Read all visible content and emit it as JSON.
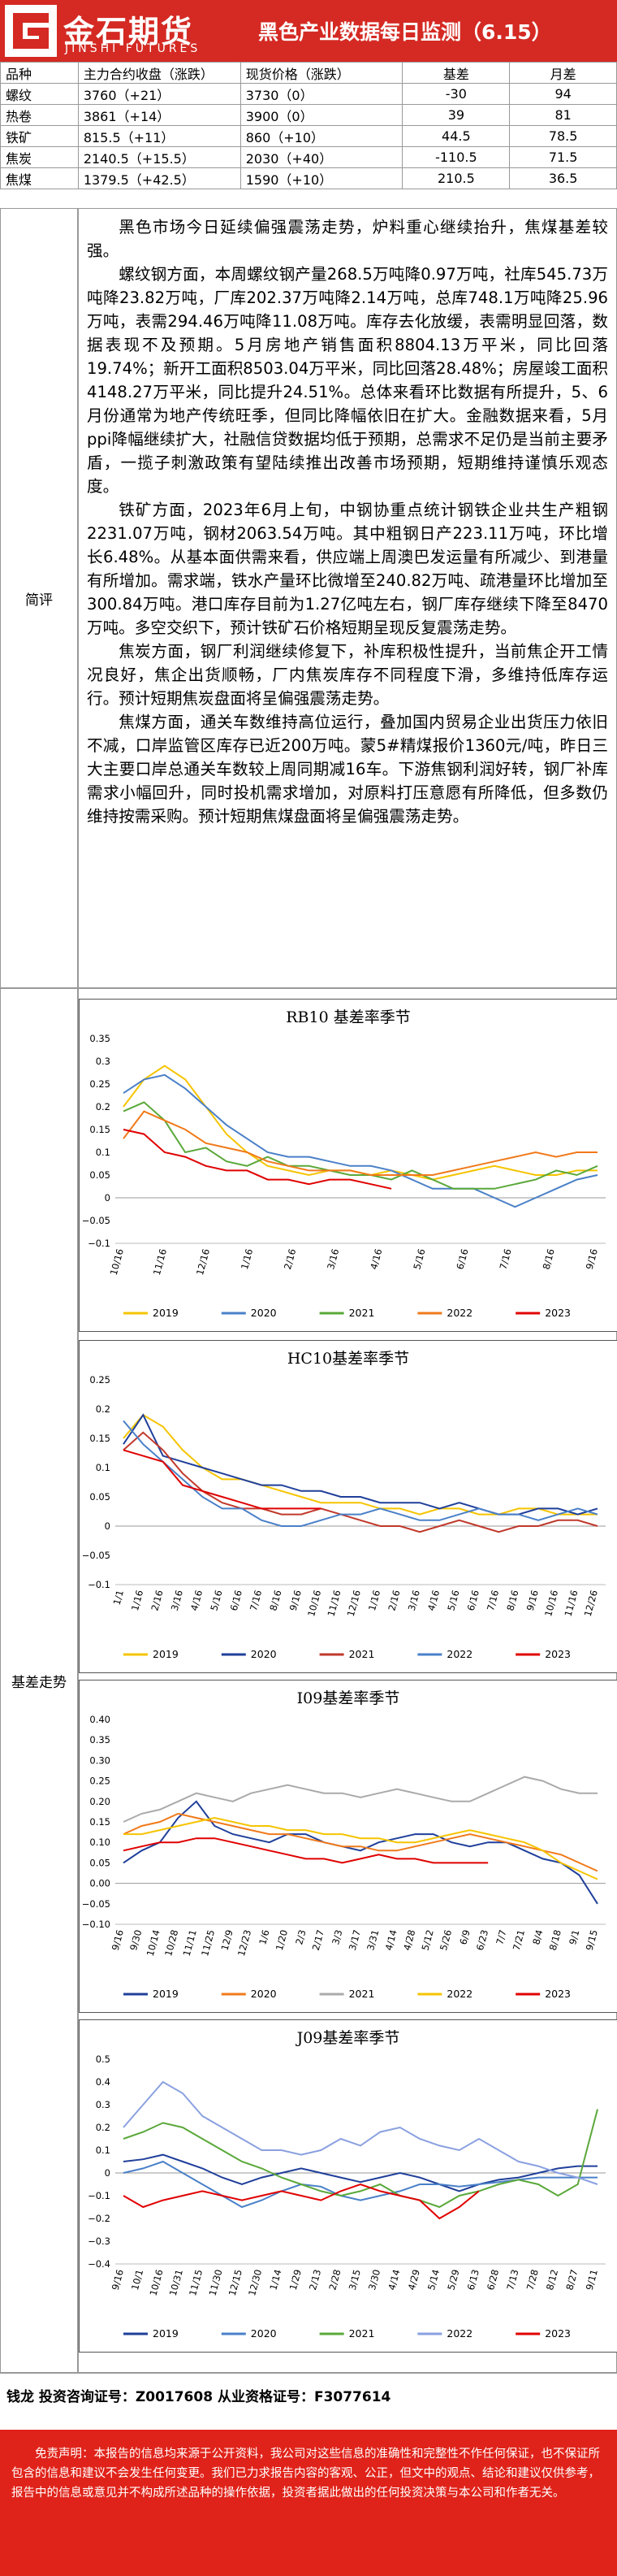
{
  "header": {
    "logo_cn": "金石期货",
    "logo_en": "JINSHI FUTURES",
    "title": "黑色产业数据每日监测（6.15）"
  },
  "price_table": {
    "headers": [
      "品种",
      "主力合约收盘（涨跌）",
      "现货价格（涨跌）",
      "基差",
      "月差"
    ],
    "rows": [
      [
        "螺纹",
        "3760（+21）",
        "3730（0）",
        "-30",
        "94"
      ],
      [
        "热卷",
        "3861（+14）",
        "3900（0）",
        "39",
        "81"
      ],
      [
        "铁矿",
        "815.5（+11）",
        "860（+10）",
        "44.5",
        "78.5"
      ],
      [
        "焦炭",
        "2140.5（+15.5）",
        "2030（+40）",
        "-110.5",
        "71.5"
      ],
      [
        "焦煤",
        "1379.5（+42.5）",
        "1590（+10）",
        "210.5",
        "36.5"
      ]
    ]
  },
  "commentary": {
    "label": "简评",
    "paragraphs": [
      "黑色市场今日延续偏强震荡走势，炉料重心继续抬升，焦煤基差较强。",
      "螺纹钢方面，本周螺纹钢产量268.5万吨降0.97万吨，社库545.73万吨降23.82万吨，厂库202.37万吨降2.14万吨，总库748.1万吨降25.96万吨，表需294.46万吨降11.08万吨。库存去化放缓，表需明显回落，数据表现不及预期。5月房地产销售面积8804.13万平米，同比回落19.74%；新开工面积8503.04万平米，同比回落28.48%；房屋竣工面积4148.27万平米，同比提升24.51%。总体来看环比数据有所提升，5、6月份通常为地产传统旺季，但同比降幅依旧在扩大。金融数据来看，5月ppi降幅继续扩大，社融信贷数据均低于预期，总需求不足仍是当前主要矛盾，一揽子刺激政策有望陆续推出改善市场预期，短期维持谨慎乐观态度。",
      "铁矿方面，2023年6月上旬，中钢协重点统计钢铁企业共生产粗钢2231.07万吨，钢材2063.54万吨。其中粗钢日产223.11万吨，环比增长6.48%。从基本面供需来看，供应端上周澳巴发运量有所减少、到港量有所增加。需求端，铁水产量环比微增至240.82万吨、疏港量环比增加至300.84万吨。港口库存目前为1.27亿吨左右，钢厂库存继续下降至8470万吨。多空交织下，预计铁矿石价格短期呈现反复震荡走势。",
      "焦炭方面，钢厂利润继续修复下，补库积极性提升，当前焦企开工情况良好，焦企出货顺畅，厂内焦炭库存不同程度下滑，多维持低库存运行。预计短期焦炭盘面将呈偏强震荡走势。",
      "焦煤方面，通关车数维持高位运行，叠加国内贸易企业出货压力依旧不减，口岸监管区库存已近200万吨。蒙5#精煤报价1360元/吨，昨日三大主要口岸总通关车数较上周同期减16车。下游焦钢利润好转，钢厂补库需求小幅回升，同时投机需求增加，对原料打压意愿有所降低，但多数仍维持按需采购。预计短期焦煤盘面将呈偏强震荡走势。"
    ]
  },
  "charts_section": {
    "label": "基差走势"
  },
  "chart_data": [
    {
      "type": "line",
      "title": "RB10 基差率季节",
      "ylim": [
        -0.1,
        0.35
      ],
      "yticks": [
        "0.35",
        "0.3",
        "0.25",
        "0.2",
        "0.15",
        "0.1",
        "0.05",
        "0",
        "−0.05",
        "−0.1"
      ],
      "xticks": [
        "10/16",
        "11/16",
        "12/16",
        "1/16",
        "2/16",
        "3/16",
        "4/16",
        "5/16",
        "6/16",
        "7/16",
        "8/16",
        "9/16"
      ],
      "legend_position": "bottom",
      "series": [
        {
          "name": "2019",
          "color": "#f5c400",
          "values": [
            0.2,
            0.26,
            0.29,
            0.26,
            0.2,
            0.14,
            0.1,
            0.07,
            0.06,
            0.05,
            0.06,
            0.06,
            0.05,
            0.06,
            0.05,
            0.04,
            0.05,
            0.06,
            0.07,
            0.06,
            0.05,
            0.05,
            0.06,
            0.06
          ]
        },
        {
          "name": "2020",
          "color": "#4a80c8",
          "values": [
            0.23,
            0.26,
            0.27,
            0.24,
            0.2,
            0.16,
            0.13,
            0.1,
            0.09,
            0.09,
            0.08,
            0.07,
            0.07,
            0.06,
            0.04,
            0.02,
            0.02,
            0.02,
            0.0,
            -0.02,
            0.0,
            0.02,
            0.04,
            0.05
          ]
        },
        {
          "name": "2021",
          "color": "#5aa83a",
          "values": [
            0.19,
            0.21,
            0.17,
            0.1,
            0.11,
            0.08,
            0.07,
            0.09,
            0.07,
            0.07,
            0.06,
            0.05,
            0.05,
            0.04,
            0.06,
            0.04,
            0.02,
            0.02,
            0.02,
            0.03,
            0.04,
            0.06,
            0.05,
            0.07
          ]
        },
        {
          "name": "2022",
          "color": "#f07a1a",
          "values": [
            0.13,
            0.19,
            0.17,
            0.15,
            0.12,
            0.11,
            0.1,
            0.08,
            0.07,
            0.06,
            0.06,
            0.06,
            0.05,
            0.05,
            0.05,
            0.05,
            0.06,
            0.07,
            0.08,
            0.09,
            0.1,
            0.09,
            0.1,
            0.1
          ]
        },
        {
          "name": "2023",
          "color": "#e00000",
          "values": [
            0.15,
            0.14,
            0.1,
            0.09,
            0.07,
            0.06,
            0.06,
            0.04,
            0.04,
            0.03,
            0.04,
            0.04,
            0.03,
            0.02
          ]
        }
      ]
    },
    {
      "type": "line",
      "title": "HC10基差率季节",
      "ylim": [
        -0.1,
        0.25
      ],
      "yticks": [
        "0.25",
        "0.2",
        "0.15",
        "0.1",
        "0.05",
        "0",
        "−0.05",
        "−0.1"
      ],
      "xticks": [
        "1/1",
        "1/16",
        "2/16",
        "3/16",
        "4/16",
        "5/16",
        "6/16",
        "7/16",
        "8/16",
        "9/16",
        "10/16",
        "11/16",
        "12/16",
        "1/16",
        "2/16",
        "3/16",
        "4/16",
        "5/16",
        "6/16",
        "7/16",
        "8/16",
        "9/16",
        "10/16",
        "11/16",
        "12/26"
      ],
      "legend_position": "bottom",
      "series": [
        {
          "name": "2019",
          "color": "#f5c400",
          "values": [
            0.15,
            0.19,
            0.17,
            0.13,
            0.1,
            0.08,
            0.08,
            0.07,
            0.06,
            0.05,
            0.04,
            0.04,
            0.04,
            0.03,
            0.03,
            0.02,
            0.03,
            0.03,
            0.02,
            0.02,
            0.03,
            0.03,
            0.02,
            0.02,
            0.02
          ]
        },
        {
          "name": "2020",
          "color": "#1f3f9a",
          "values": [
            0.14,
            0.19,
            0.12,
            0.11,
            0.1,
            0.09,
            0.08,
            0.07,
            0.07,
            0.06,
            0.06,
            0.05,
            0.05,
            0.04,
            0.04,
            0.04,
            0.03,
            0.04,
            0.03,
            0.02,
            0.02,
            0.03,
            0.03,
            0.02,
            0.03
          ]
        },
        {
          "name": "2021",
          "color": "#c0392b",
          "values": [
            0.13,
            0.16,
            0.13,
            0.09,
            0.06,
            0.04,
            0.03,
            0.03,
            0.02,
            0.02,
            0.03,
            0.02,
            0.01,
            0.0,
            0.0,
            -0.01,
            0.0,
            0.01,
            0.0,
            -0.01,
            0.0,
            0.0,
            0.01,
            0.01,
            0.0
          ]
        },
        {
          "name": "2022",
          "color": "#4a80c8",
          "values": [
            0.18,
            0.14,
            0.11,
            0.08,
            0.05,
            0.03,
            0.03,
            0.01,
            0.0,
            0.0,
            0.01,
            0.02,
            0.02,
            0.03,
            0.02,
            0.01,
            0.01,
            0.02,
            0.03,
            0.02,
            0.02,
            0.01,
            0.02,
            0.03,
            0.02
          ]
        },
        {
          "name": "2023",
          "color": "#e00000",
          "values": [
            0.13,
            0.12,
            0.11,
            0.07,
            0.06,
            0.05,
            0.04,
            0.03,
            0.03,
            0.03,
            0.03
          ]
        }
      ]
    },
    {
      "type": "line",
      "title": "I09基差率季节",
      "ylim": [
        -0.1,
        0.4
      ],
      "yticks": [
        "0.40",
        "0.35",
        "0.30",
        "0.25",
        "0.20",
        "0.15",
        "0.10",
        "0.05",
        "0.00",
        "−0.05",
        "−0.10"
      ],
      "xticks": [
        "9/16",
        "9/30",
        "10/14",
        "10/28",
        "11/11",
        "11/25",
        "12/9",
        "12/23",
        "1/6",
        "1/20",
        "2/3",
        "2/17",
        "3/3",
        "3/17",
        "3/31",
        "4/14",
        "4/28",
        "5/12",
        "5/26",
        "6/9",
        "6/23",
        "7/7",
        "7/21",
        "8/4",
        "8/18",
        "9/1",
        "9/15"
      ],
      "legend_position": "bottom",
      "series": [
        {
          "name": "2019",
          "color": "#1f3f9a",
          "values": [
            0.05,
            0.08,
            0.1,
            0.16,
            0.2,
            0.14,
            0.12,
            0.11,
            0.1,
            0.12,
            0.12,
            0.1,
            0.09,
            0.08,
            0.1,
            0.11,
            0.12,
            0.12,
            0.1,
            0.09,
            0.1,
            0.1,
            0.08,
            0.06,
            0.05,
            0.02,
            -0.05
          ]
        },
        {
          "name": "2020",
          "color": "#f07a1a",
          "values": [
            0.12,
            0.14,
            0.15,
            0.17,
            0.16,
            0.15,
            0.14,
            0.13,
            0.12,
            0.12,
            0.11,
            0.1,
            0.09,
            0.09,
            0.08,
            0.08,
            0.09,
            0.1,
            0.11,
            0.12,
            0.11,
            0.1,
            0.09,
            0.08,
            0.07,
            0.05,
            0.03
          ]
        },
        {
          "name": "2021",
          "color": "#aaaaaa",
          "values": [
            0.15,
            0.17,
            0.18,
            0.2,
            0.22,
            0.21,
            0.2,
            0.22,
            0.23,
            0.24,
            0.23,
            0.22,
            0.22,
            0.21,
            0.22,
            0.23,
            0.22,
            0.21,
            0.2,
            0.2,
            0.22,
            0.24,
            0.26,
            0.25,
            0.23,
            0.22,
            0.22
          ]
        },
        {
          "name": "2022",
          "color": "#f5c400",
          "values": [
            0.12,
            0.12,
            0.13,
            0.14,
            0.15,
            0.16,
            0.15,
            0.14,
            0.14,
            0.13,
            0.13,
            0.12,
            0.12,
            0.11,
            0.11,
            0.1,
            0.1,
            0.11,
            0.12,
            0.13,
            0.12,
            0.11,
            0.1,
            0.08,
            0.05,
            0.03,
            0.01
          ]
        },
        {
          "name": "2023",
          "color": "#e00000",
          "values": [
            0.08,
            0.09,
            0.1,
            0.1,
            0.11,
            0.11,
            0.1,
            0.09,
            0.08,
            0.07,
            0.06,
            0.06,
            0.05,
            0.06,
            0.07,
            0.06,
            0.06,
            0.05,
            0.05,
            0.05,
            0.05
          ]
        }
      ]
    },
    {
      "type": "line",
      "title": "J09基差率季节",
      "ylim": [
        -0.4,
        0.5
      ],
      "yticks": [
        "0.5",
        "0.4",
        "0.3",
        "0.2",
        "0.1",
        "0",
        "−0.1",
        "−0.2",
        "−0.3",
        "−0.4"
      ],
      "xticks": [
        "9/16",
        "10/1",
        "10/16",
        "10/31",
        "11/15",
        "11/30",
        "12/15",
        "12/30",
        "1/14",
        "1/29",
        "2/13",
        "2/28",
        "3/15",
        "3/30",
        "4/14",
        "4/29",
        "5/14",
        "5/29",
        "6/13",
        "6/28",
        "7/13",
        "7/28",
        "8/12",
        "8/27",
        "9/11"
      ],
      "legend_position": "bottom",
      "series": [
        {
          "name": "2019",
          "color": "#1f3f9a",
          "values": [
            0.05,
            0.06,
            0.08,
            0.05,
            0.02,
            -0.02,
            -0.05,
            -0.02,
            0.0,
            0.02,
            0.0,
            -0.02,
            -0.04,
            -0.02,
            0.0,
            -0.02,
            -0.05,
            -0.08,
            -0.05,
            -0.03,
            -0.02,
            0.0,
            0.02,
            0.03,
            0.03
          ]
        },
        {
          "name": "2020",
          "color": "#4a80c8",
          "values": [
            0.0,
            0.02,
            0.05,
            0.0,
            -0.05,
            -0.1,
            -0.15,
            -0.12,
            -0.08,
            -0.05,
            -0.06,
            -0.1,
            -0.12,
            -0.1,
            -0.08,
            -0.05,
            -0.05,
            -0.06,
            -0.05,
            -0.04,
            -0.03,
            -0.02,
            -0.02,
            -0.02,
            -0.02
          ]
        },
        {
          "name": "2021",
          "color": "#5aa83a",
          "values": [
            0.15,
            0.18,
            0.22,
            0.2,
            0.15,
            0.1,
            0.05,
            0.02,
            -0.02,
            -0.05,
            -0.08,
            -0.1,
            -0.08,
            -0.05,
            -0.1,
            -0.12,
            -0.15,
            -0.1,
            -0.08,
            -0.05,
            -0.03,
            -0.05,
            -0.1,
            -0.05,
            0.28
          ]
        },
        {
          "name": "2022",
          "color": "#8aa0e0",
          "values": [
            0.2,
            0.3,
            0.4,
            0.35,
            0.25,
            0.2,
            0.15,
            0.1,
            0.1,
            0.08,
            0.1,
            0.15,
            0.12,
            0.18,
            0.2,
            0.15,
            0.12,
            0.1,
            0.15,
            0.1,
            0.05,
            0.03,
            0.0,
            -0.02,
            -0.05
          ]
        },
        {
          "name": "2023",
          "color": "#e00000",
          "values": [
            -0.1,
            -0.15,
            -0.12,
            -0.1,
            -0.08,
            -0.1,
            -0.12,
            -0.1,
            -0.08,
            -0.1,
            -0.12,
            -0.08,
            -0.05,
            -0.08,
            -0.1,
            -0.12,
            -0.2,
            -0.15,
            -0.08
          ]
        }
      ]
    }
  ],
  "footer": {
    "author": "钱龙  投资咨询证号：Z0017608  从业资格证号：F3077614",
    "disclaimer": "免责声明：本报告的信息均来源于公开资料，我公司对这些信息的准确性和完整性不作任何保证，也不保证所包含的信息和建议不会发生任何变更。我们已力求报告内容的客观、公正，但文中的观点、结论和建议仅供参考，报告中的信息或意见并不构成所述品种的操作依据，投资者据此做出的任何投资决策与本公司和作者无关。"
  }
}
